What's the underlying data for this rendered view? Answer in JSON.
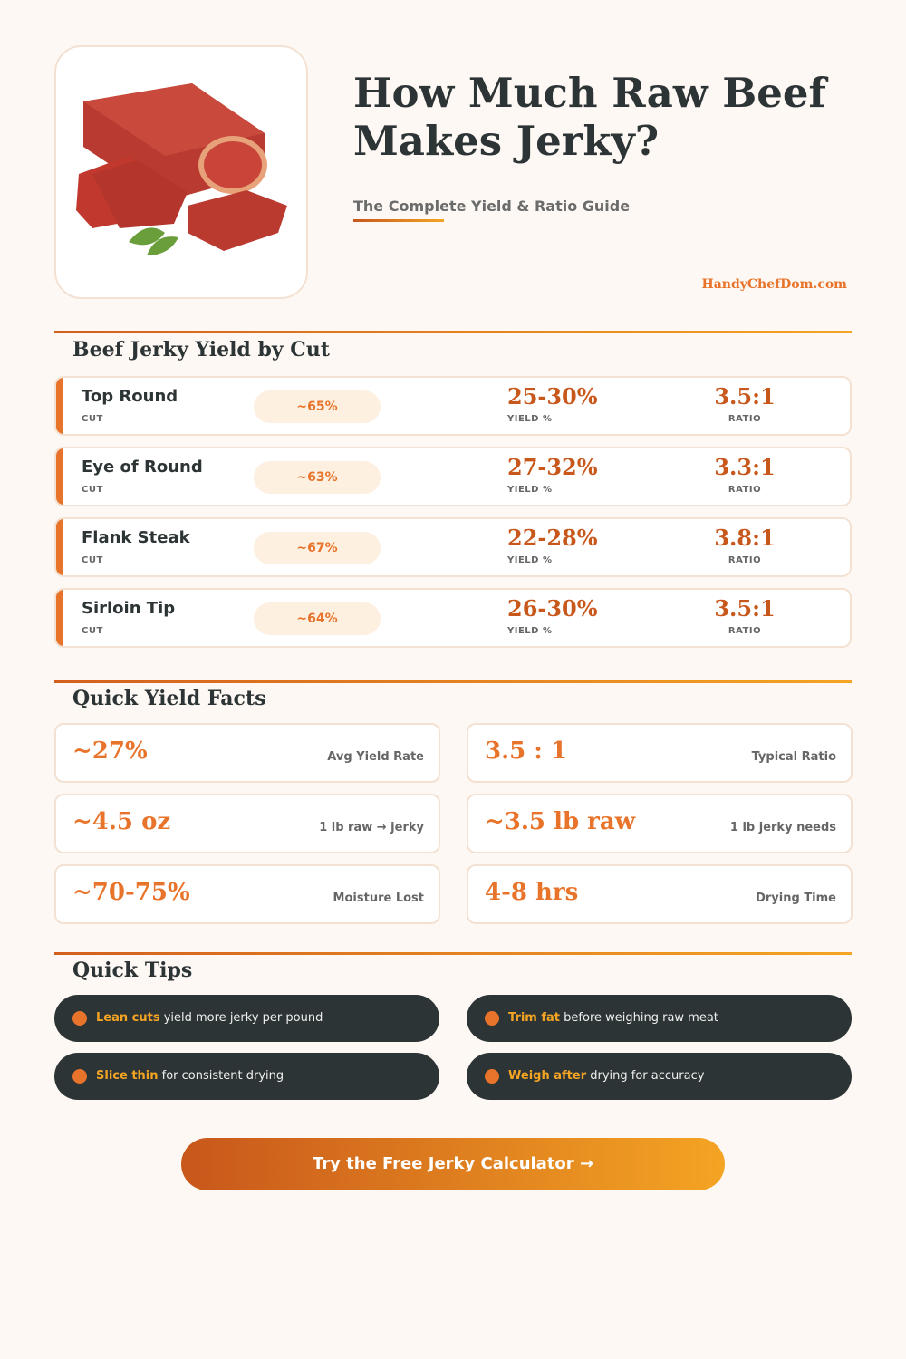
{
  "header": {
    "title": "How Much Raw Beef Makes Jerky?",
    "subtitle": "The Complete Yield & Ratio Guide",
    "site": "HandyChefDom.com"
  },
  "cuts_section": {
    "heading": "Beef Jerky Yield by Cut",
    "cut_label": "CUT",
    "yield_label": "YIELD %",
    "ratio_label": "RATIO",
    "rows": [
      {
        "name": "Top Round",
        "lean": "~65%",
        "yield": "25-30%",
        "ratio": "3.5:1"
      },
      {
        "name": "Eye of Round",
        "lean": "~63%",
        "yield": "27-32%",
        "ratio": "3.3:1"
      },
      {
        "name": "Flank Steak",
        "lean": "~67%",
        "yield": "22-28%",
        "ratio": "3.8:1"
      },
      {
        "name": "Sirloin Tip",
        "lean": "~64%",
        "yield": "26-30%",
        "ratio": "3.5:1"
      }
    ]
  },
  "facts_section": {
    "heading": "Quick Yield Facts",
    "facts": [
      {
        "value": "~27%",
        "caption": "Avg Yield Rate"
      },
      {
        "value": "3.5 : 1",
        "caption": "Typical Ratio"
      },
      {
        "value": "~4.5 oz",
        "caption": "1 lb raw → jerky"
      },
      {
        "value": "~3.5 lb raw",
        "caption": "1 lb jerky needs"
      },
      {
        "value": "~70-75%",
        "caption": "Moisture Lost"
      },
      {
        "value": "4-8 hrs",
        "caption": "Drying Time"
      }
    ]
  },
  "tips_section": {
    "heading": "Quick Tips",
    "tips": [
      {
        "bold": "Lean cuts",
        "text": " yield more jerky per pound"
      },
      {
        "bold": "Trim fat",
        "text": " before weighing raw meat"
      },
      {
        "bold": "Slice thin",
        "text": " for consistent drying"
      },
      {
        "bold": "Weigh after",
        "text": " drying for accuracy"
      }
    ]
  },
  "cta": {
    "label": "Try the Free Jerky Calculator →"
  },
  "colors": {
    "accent": "#e8732a",
    "accent_dark": "#c8571b",
    "gold": "#f4a423",
    "dark": "#2d3436",
    "background": "#fdf8f3"
  }
}
